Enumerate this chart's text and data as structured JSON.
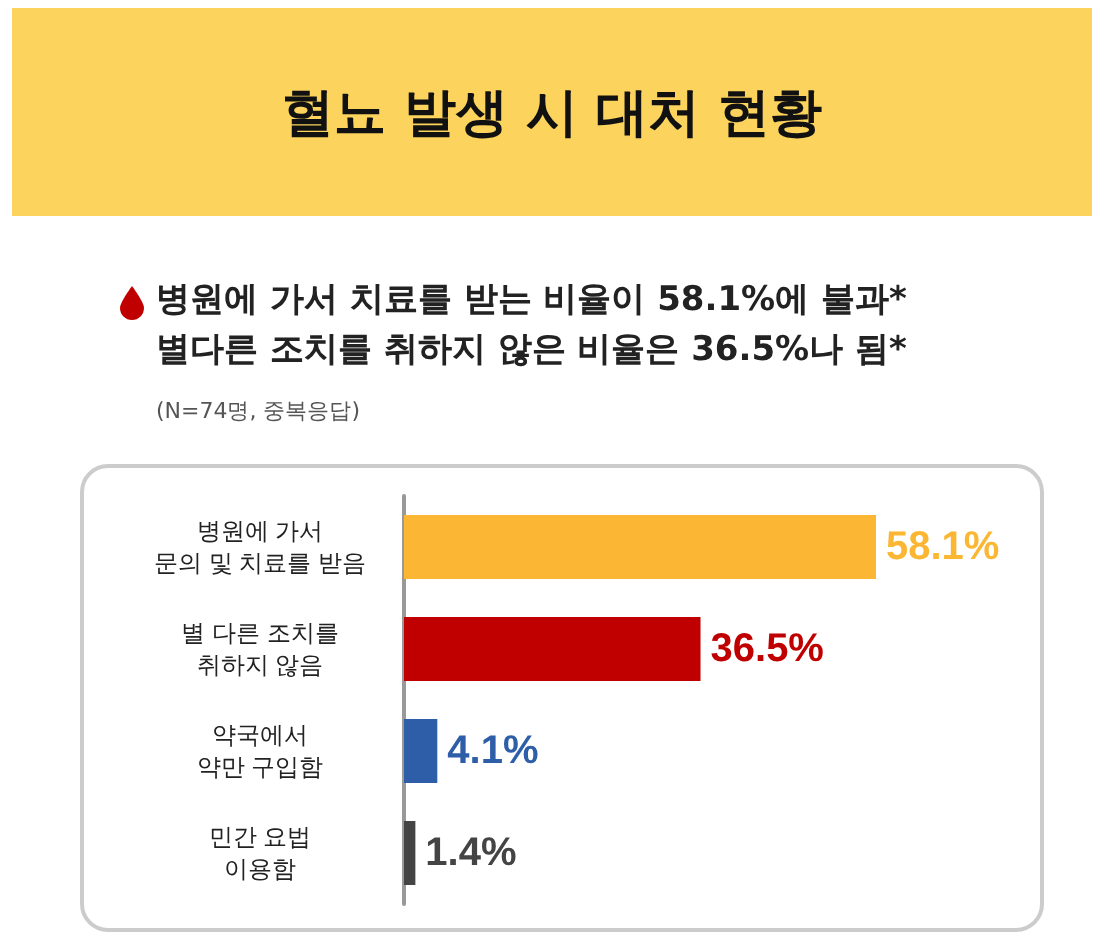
{
  "chart_data": {
    "type": "bar",
    "orientation": "horizontal",
    "title": "혈뇨 발생 시 대처 현황",
    "subtitle": "병원에 가서 치료를 받는 비율이 58.1%에 불과*\n별다른 조치를 취하지 않은 비율은 36.5%나 됨*",
    "annotations": [
      "(N=74명, 중복응답)"
    ],
    "categories": [
      "병원에 가서\n문의 및 치료를 받음",
      "별 다른 조치를\n취하지 않음",
      "약국에서\n약만 구입함",
      "민간 요법\n이용함"
    ],
    "values": [
      58.1,
      36.5,
      4.1,
      1.4
    ],
    "colors": [
      "#fbb733",
      "#c00000",
      "#2e5ea8",
      "#444444"
    ],
    "value_labels": [
      "58.1%",
      "36.5%",
      "4.1%",
      "1.4%"
    ]
  }
}
